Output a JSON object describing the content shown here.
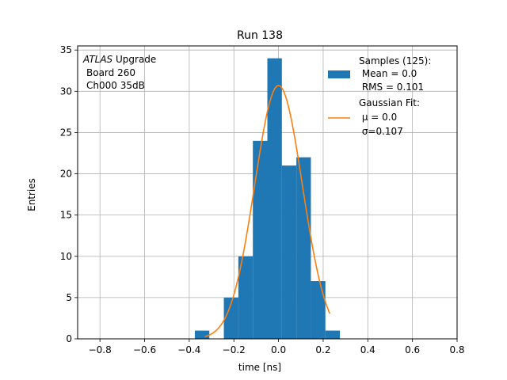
{
  "chart_data": {
    "type": "bar",
    "title": "Run 138",
    "xlabel": "time [ns]",
    "ylabel": "Entries",
    "xlim": [
      -0.9,
      0.8
    ],
    "ylim": [
      0,
      35.5
    ],
    "xticks": [
      -0.8,
      -0.6,
      -0.4,
      -0.2,
      0.0,
      0.2,
      0.4,
      0.6,
      0.8
    ],
    "xtick_labels": [
      "−0.8",
      "−0.6",
      "−0.4",
      "−0.2",
      "0.0",
      "0.2",
      "0.4",
      "0.6",
      "0.8"
    ],
    "yticks": [
      0,
      5,
      10,
      15,
      20,
      25,
      30,
      35
    ],
    "ytick_labels": [
      "0",
      "5",
      "10",
      "15",
      "20",
      "25",
      "30",
      "35"
    ],
    "grid": true,
    "legend_position": "top-right",
    "histogram": {
      "bin_edges": [
        -0.375,
        -0.31,
        -0.245,
        -0.18,
        -0.115,
        -0.05,
        0.015,
        0.08,
        0.145,
        0.21,
        0.275
      ],
      "counts": [
        1,
        0,
        5,
        10,
        24,
        34,
        21,
        22,
        7,
        1
      ],
      "color": "#1f77b4"
    },
    "fit": {
      "mu": 0.0,
      "sigma": 0.107,
      "amplitude": 30.7,
      "x_range": [
        -0.33,
        0.23
      ],
      "color": "#ff7f0e"
    },
    "legend": {
      "histogram_lines": [
        "Samples (125):",
        " Mean = 0.0",
        " RMS = 0.101"
      ],
      "fit_lines": [
        "Gaussian Fit:",
        " μ = 0.0",
        " σ=0.107"
      ]
    },
    "annotation": {
      "line1_italic": "ATLAS",
      "line1_rest": " Upgrade",
      "line2": "Board 260",
      "line3": "Ch000 35dB"
    }
  }
}
